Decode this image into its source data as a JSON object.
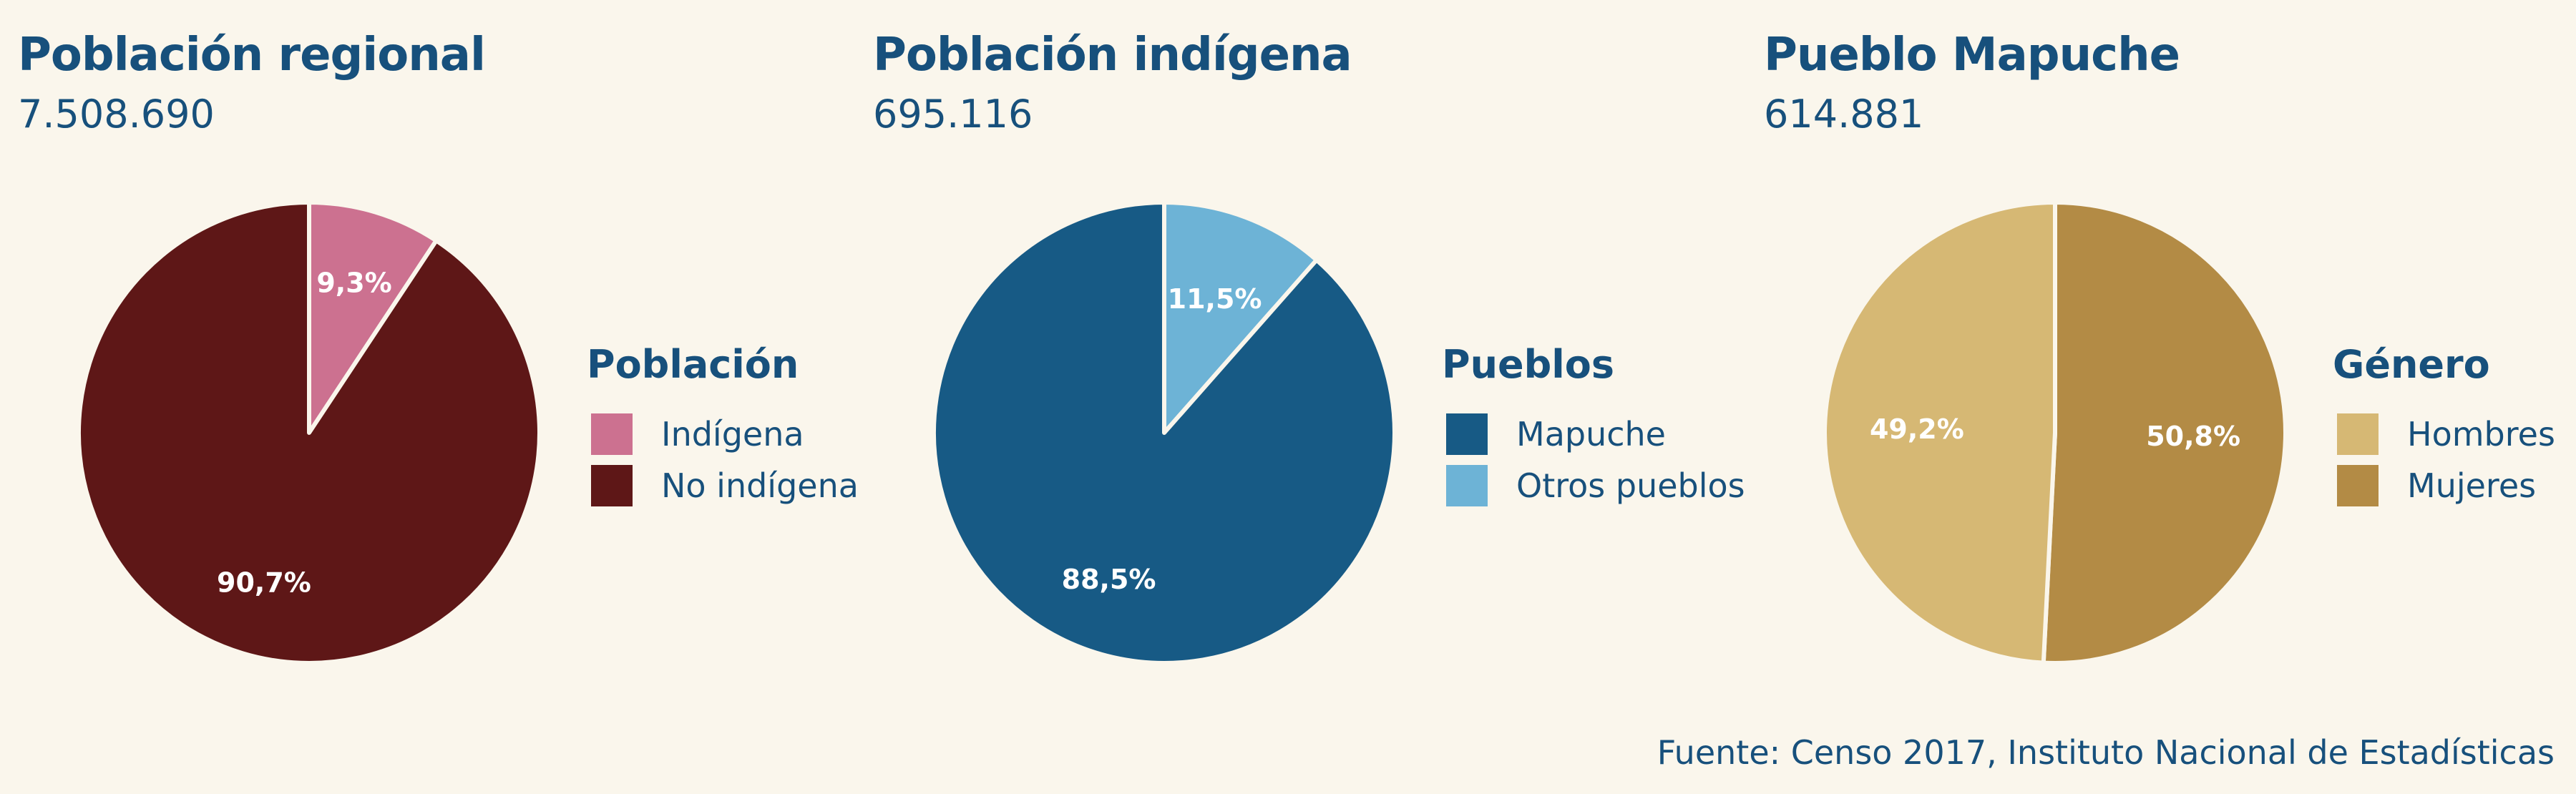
{
  "source": "Fuente: Censo 2017, Instituto Nacional de Estadísticas",
  "chart_data": [
    {
      "type": "pie",
      "title": "Población regional",
      "subtitle": "7.508.690",
      "legend_title": "Población",
      "legend_placement": "right",
      "slices": [
        {
          "label": "Indígena",
          "value": 9.3,
          "value_label": "9,3%",
          "color": "#cc7190"
        },
        {
          "label": "No indígena",
          "value": 90.7,
          "value_label": "90,7%",
          "color": "#5e1717"
        }
      ]
    },
    {
      "type": "pie",
      "title": "Población indígena",
      "subtitle": "695.116",
      "legend_title": "Pueblos",
      "legend_placement": "right",
      "slices": [
        {
          "label": "Mapuche",
          "value": 88.5,
          "value_label": "88,5%",
          "color": "#175a85"
        },
        {
          "label": "Otros pueblos",
          "value": 11.5,
          "value_label": "11,5%",
          "color": "#6db3d6"
        }
      ]
    },
    {
      "type": "pie",
      "title": "Pueblo Mapuche",
      "subtitle": "614.881",
      "legend_title": "Género",
      "legend_placement": "right",
      "slices": [
        {
          "label": "Hombres",
          "value": 49.2,
          "value_label": "49,2%",
          "color": "#d6b874"
        },
        {
          "label": "Mujeres",
          "value": 50.8,
          "value_label": "50,8%",
          "color": "#b38b45"
        }
      ]
    }
  ]
}
